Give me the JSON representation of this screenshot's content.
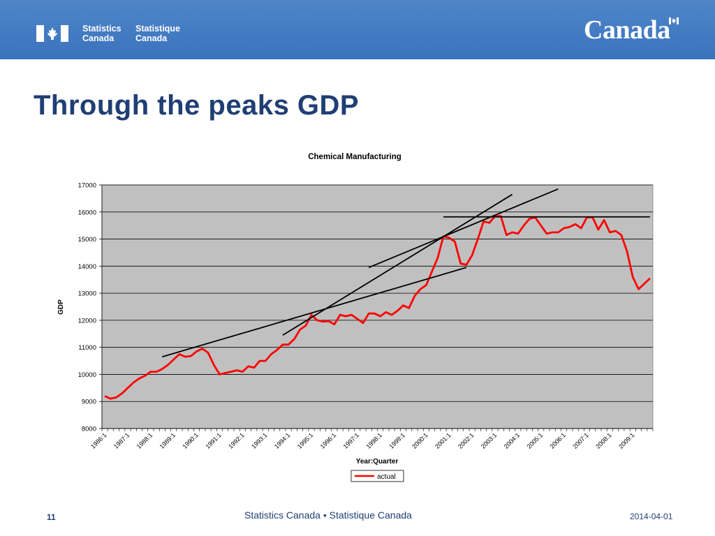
{
  "header": {
    "agency_en_line1": "Statistics",
    "agency_en_line2": "Canada",
    "agency_fr_line1": "Statistique",
    "agency_fr_line2": "Canada",
    "wordmark": "Canada",
    "flag_icon": "canada-flag-icon"
  },
  "slide": {
    "title": "Through the peaks GDP"
  },
  "footer": {
    "page_number": "11",
    "center_text": "Statistics Canada • Statistique Canada",
    "date": "2014-04-01"
  },
  "colors": {
    "header_blue": "#3a73bd",
    "title_navy": "#1f3f74",
    "plot_bg": "#c0c0c0",
    "series_red": "#ff0000",
    "trend_black": "#000000"
  },
  "chart_data": {
    "type": "line",
    "title": "Chemical Manufacturing",
    "xlabel": "Year:Quarter",
    "ylabel": "GDP",
    "ylim": [
      8000,
      17000
    ],
    "yticks": [
      8000,
      9000,
      10000,
      11000,
      12000,
      13000,
      14000,
      15000,
      16000,
      17000
    ],
    "grid": true,
    "legend_position": "bottom",
    "xticks": [
      "1986:1",
      "1987:1",
      "1988:1",
      "1989:1",
      "1990:1",
      "1991:1",
      "1992:1",
      "1993:1",
      "1994:1",
      "1995:1",
      "1996:1",
      "1997:1",
      "1998:1",
      "1999:1",
      "2000:1",
      "2001:1",
      "2002:1",
      "2003:1",
      "2004:1",
      "2005:1",
      "2006:1",
      "2007:1",
      "2008:1",
      "2009:1"
    ],
    "series": [
      {
        "name": "actual",
        "color": "#ff0000",
        "values": [
          9200,
          9100,
          9150,
          9300,
          9500,
          9700,
          9850,
          9950,
          10100,
          10100,
          10200,
          10350,
          10550,
          10750,
          10650,
          10680,
          10850,
          10950,
          10800,
          10350,
          10000,
          10050,
          10100,
          10150,
          10100,
          10300,
          10250,
          10500,
          10500,
          10750,
          10900,
          11100,
          11100,
          11300,
          11650,
          11800,
          12200,
          12000,
          11950,
          11970,
          11850,
          12200,
          12150,
          12200,
          12050,
          11900,
          12250,
          12250,
          12150,
          12300,
          12200,
          12350,
          12550,
          12450,
          12900,
          13150,
          13300,
          13800,
          14300,
          15100,
          15050,
          14900,
          14100,
          14050,
          14400,
          15000,
          15650,
          15600,
          15850,
          15850,
          15150,
          15250,
          15200,
          15500,
          15750,
          15800,
          15500,
          15200,
          15250,
          15250,
          15400,
          15450,
          15550,
          15400,
          15800,
          15800,
          15350,
          15700,
          15250,
          15300,
          15150,
          14550,
          13600,
          13150,
          13350,
          13550
        ]
      }
    ],
    "trend_lines": [
      {
        "from": [
          "1988:3",
          10650
        ],
        "to": [
          "2001:4",
          13950
        ]
      },
      {
        "from": [
          "1993:4",
          11450
        ],
        "to": [
          "2003:4",
          16650
        ]
      },
      {
        "from": [
          "1997:3",
          13950
        ],
        "to": [
          "2005:4",
          16850
        ]
      },
      {
        "from": [
          "2000:4",
          15820
        ],
        "to": [
          "2009:4",
          15820
        ]
      }
    ]
  }
}
